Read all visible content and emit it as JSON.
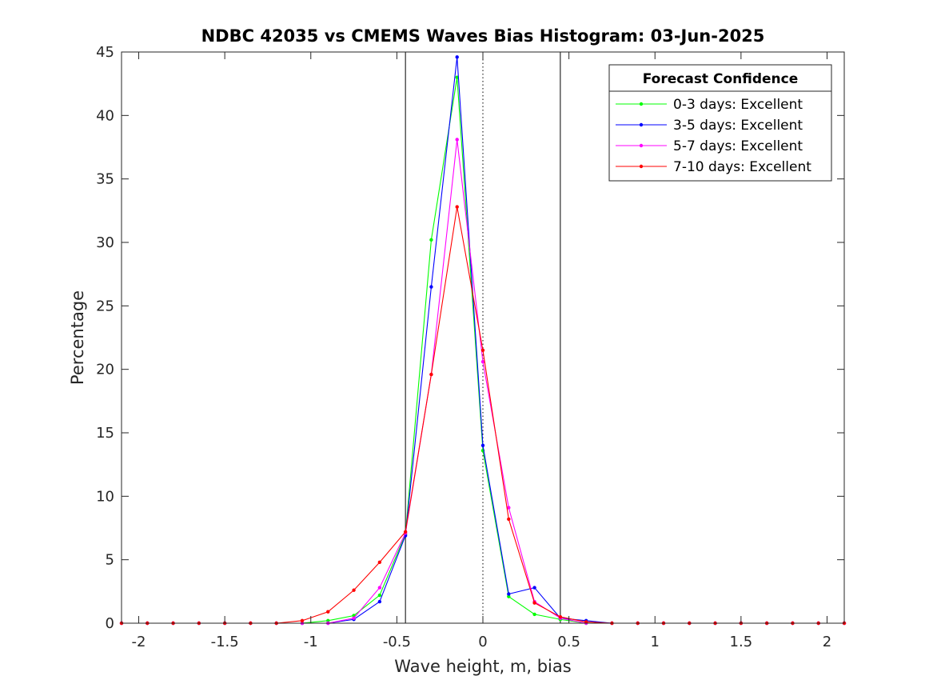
{
  "chart_data": {
    "type": "line",
    "title": "NDBC 42035 vs CMEMS Waves Bias Histogram: 03-Jun-2025",
    "xlabel": "Wave height, m, bias",
    "ylabel": "Percentage",
    "xlim": [
      -2.1,
      2.1
    ],
    "ylim": [
      0,
      45
    ],
    "xticks": [
      -2,
      -1.5,
      -1,
      -0.5,
      0,
      0.5,
      1,
      1.5,
      2
    ],
    "xtick_labels": [
      "-2",
      "-1.5",
      "-1",
      "-0.5",
      "0",
      "0.5",
      "1",
      "1.5",
      "2"
    ],
    "yticks": [
      0,
      5,
      10,
      15,
      20,
      25,
      30,
      35,
      40,
      45
    ],
    "ytick_labels": [
      "0",
      "5",
      "10",
      "15",
      "20",
      "25",
      "30",
      "35",
      "40",
      "45"
    ],
    "grid": false,
    "reference_lines": [
      {
        "x": -0.45,
        "style": "solid"
      },
      {
        "x": 0.45,
        "style": "solid"
      },
      {
        "x": 0,
        "style": "dotted"
      }
    ],
    "x": [
      -2.1,
      -1.95,
      -1.8,
      -1.65,
      -1.5,
      -1.35,
      -1.2,
      -1.05,
      -0.9,
      -0.75,
      -0.6,
      -0.45,
      -0.3,
      -0.15,
      0,
      0.15,
      0.3,
      0.45,
      0.6,
      0.75,
      0.9,
      1.05,
      1.2,
      1.35,
      1.5,
      1.65,
      1.8,
      1.95,
      2.1
    ],
    "series": [
      {
        "name": "0-3 days: Excellent",
        "color": "#00ff00",
        "values": [
          0,
          0,
          0,
          0,
          0,
          0,
          0,
          0,
          0.2,
          0.6,
          2.2,
          7.0,
          30.2,
          43.0,
          13.6,
          2.1,
          0.7,
          0.3,
          0,
          0,
          0,
          0,
          0,
          0,
          0,
          0,
          0,
          0,
          0
        ]
      },
      {
        "name": "3-5 days: Excellent",
        "color": "#0000ff",
        "values": [
          0,
          0,
          0,
          0,
          0,
          0,
          0,
          0,
          0,
          0.3,
          1.7,
          6.9,
          26.5,
          44.6,
          14.0,
          2.3,
          2.8,
          0.4,
          0.2,
          0,
          0,
          0,
          0,
          0,
          0,
          0,
          0,
          0,
          0
        ]
      },
      {
        "name": "5-7 days: Excellent",
        "color": "#ff00ff",
        "values": [
          0,
          0,
          0,
          0,
          0,
          0,
          0,
          0,
          0,
          0.4,
          2.8,
          7.1,
          19.6,
          38.1,
          20.6,
          9.1,
          1.7,
          0.4,
          0,
          0,
          0,
          0,
          0,
          0,
          0,
          0,
          0,
          0,
          0
        ]
      },
      {
        "name": "7-10 days: Excellent",
        "color": "#ff0000",
        "values": [
          0,
          0,
          0,
          0,
          0,
          0,
          0,
          0.2,
          0.9,
          2.6,
          4.8,
          7.2,
          19.6,
          32.8,
          21.5,
          8.2,
          1.6,
          0.5,
          0.1,
          0,
          0,
          0,
          0,
          0,
          0,
          0,
          0,
          0,
          0
        ]
      }
    ],
    "legend": {
      "title": "Forecast Confidence",
      "location": "top-right"
    }
  }
}
